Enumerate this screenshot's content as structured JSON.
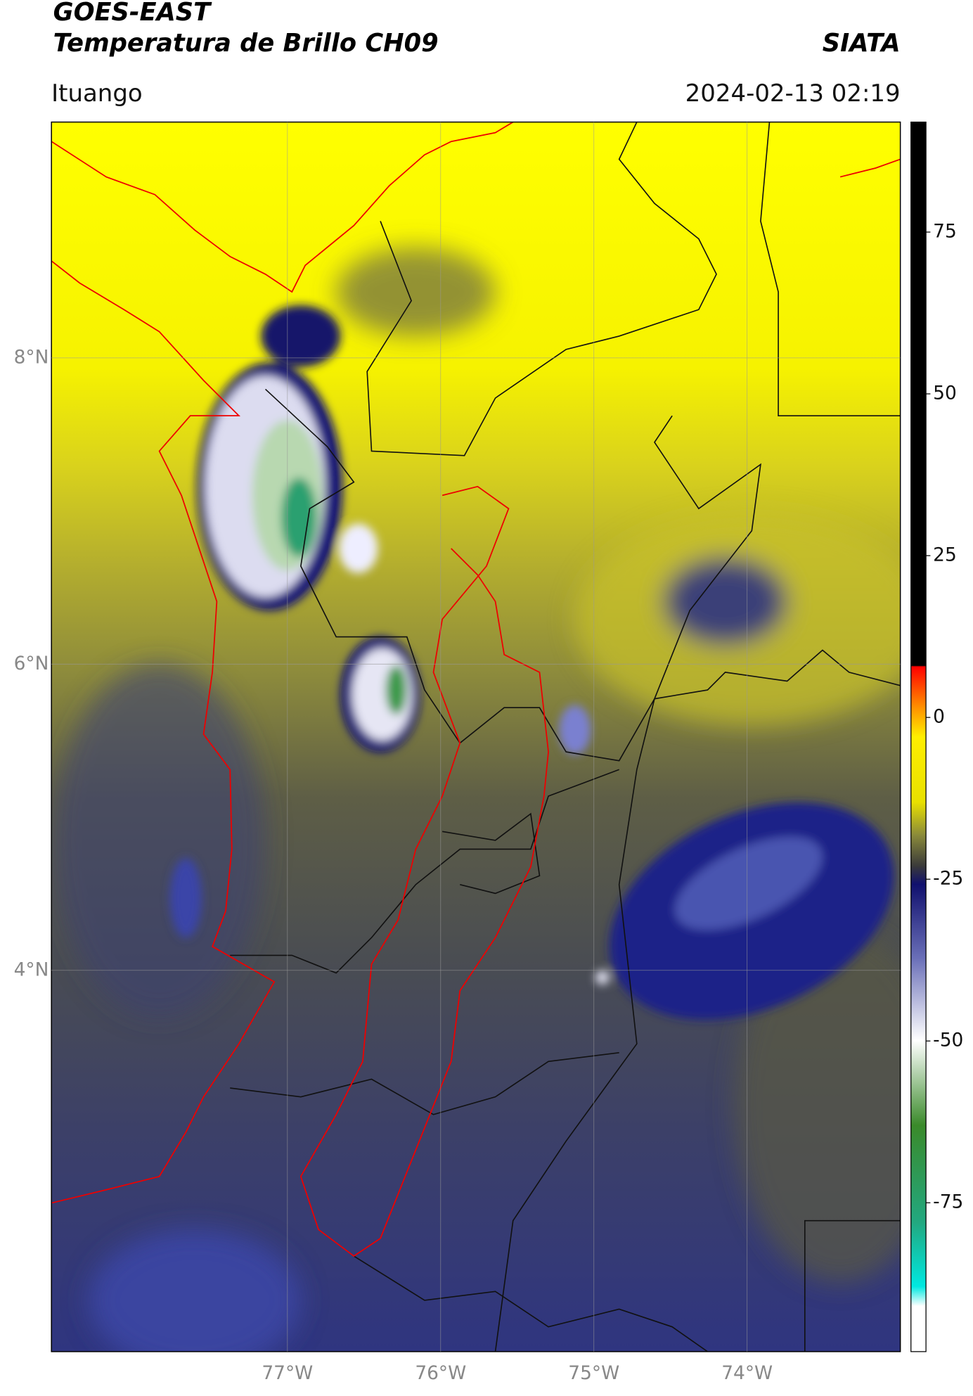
{
  "header": {
    "title": "GOES-EAST",
    "subtitle": "Temperatura de Brillo CH09",
    "location": "Ituango",
    "source": "SIATA",
    "datetime": "2024-02-13 02:19"
  },
  "map": {
    "xlim": [
      -78.54,
      -73.0
    ],
    "ylim": [
      1.51,
      9.54
    ],
    "xticks": [
      {
        "value": -77,
        "label": "77°W"
      },
      {
        "value": -76,
        "label": "76°W"
      },
      {
        "value": -75,
        "label": "75°W"
      },
      {
        "value": -74,
        "label": "74°W"
      }
    ],
    "yticks": [
      {
        "value": 8,
        "label": "8°N"
      },
      {
        "value": 6,
        "label": "6°N"
      },
      {
        "value": 4,
        "label": "4°N"
      }
    ],
    "grid": true
  },
  "colorbar": {
    "lim": [
      -98,
      92
    ],
    "ticks": [
      75,
      50,
      25,
      0,
      -25,
      -50,
      -75
    ]
  }
}
